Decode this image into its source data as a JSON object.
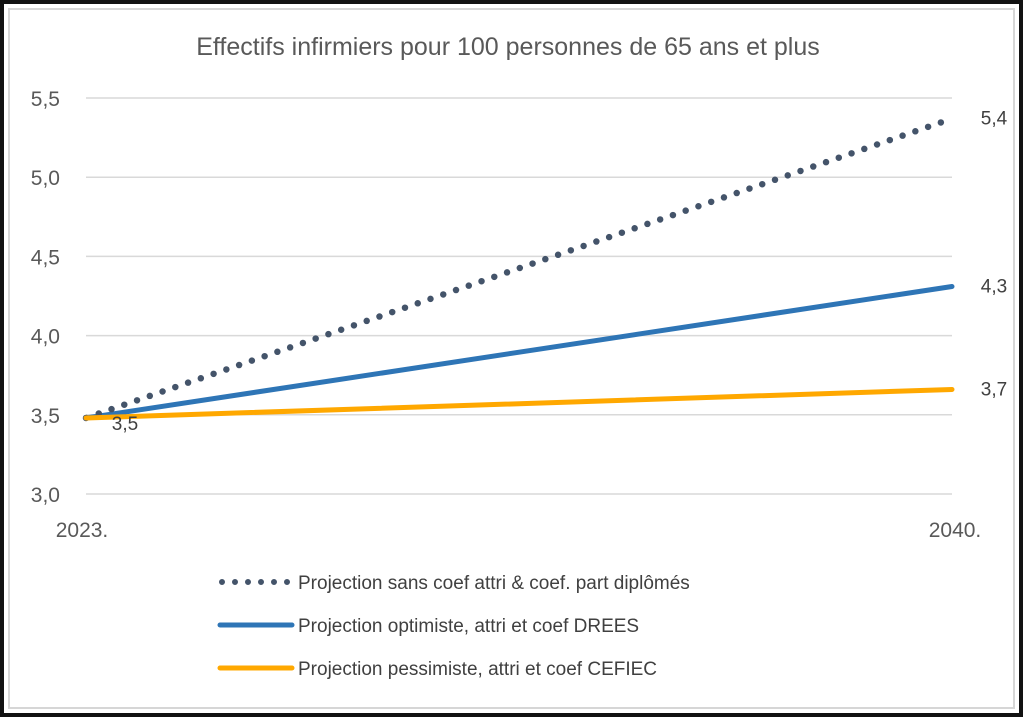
{
  "chart_data": {
    "type": "line",
    "title": "Effectifs infirmiers  pour 100 personnes de 65 ans et plus",
    "xlabel": "",
    "ylabel": "",
    "x": [
      "2023.",
      "2040."
    ],
    "ylim": [
      3.0,
      5.5
    ],
    "yticks": [
      3.0,
      3.5,
      4.0,
      4.5,
      5.0,
      5.5
    ],
    "ytick_labels": [
      "3,0",
      "3,5",
      "4,0",
      "4,5",
      "5,0",
      "5,5"
    ],
    "grid": true,
    "legend_position": "bottom",
    "series": [
      {
        "name": "Projection sans coef attri & coef. part diplômés",
        "values": [
          3.48,
          5.37
        ],
        "color": "#44546a",
        "style": "dotted",
        "data_labels": [
          "",
          "5,4"
        ]
      },
      {
        "name": "Projection optimiste, attri et coef DREES",
        "values": [
          3.48,
          4.31
        ],
        "color": "#2e75b6",
        "style": "solid",
        "data_labels": [
          "",
          "4,3"
        ]
      },
      {
        "name": "Projection pessimiste, attri et coef CEFIEC",
        "values": [
          3.48,
          3.66
        ],
        "color": "#ffa800",
        "style": "solid",
        "data_labels": [
          "3,5",
          "3,7"
        ]
      }
    ]
  }
}
